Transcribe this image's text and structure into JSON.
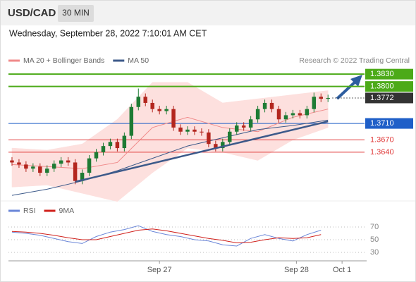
{
  "header": {
    "symbol": "USD/CAD",
    "timeframe": "30 MIN",
    "datetime": "Wednesday, September 28, 2022 7:10:01 AM CET"
  },
  "chart_data": [
    {
      "type": "candlestick",
      "attribution": "Research © 2022 Trading Central",
      "up_color": "#1e7b34",
      "down_color": "#b3261e",
      "xlim": [
        -0.5,
        50.5
      ],
      "ylim": [
        1.353,
        1.3856
      ],
      "x": [
        0,
        1,
        2,
        3,
        4,
        5,
        6,
        7,
        8,
        9,
        10,
        11,
        12,
        13,
        14,
        15,
        16,
        17,
        18,
        19,
        20,
        21,
        22,
        23,
        24,
        25,
        26,
        27,
        28,
        29,
        30,
        31,
        32,
        33,
        34,
        35,
        36,
        37,
        38,
        39,
        40,
        41,
        42,
        43,
        44,
        45
      ],
      "open": [
        1.362,
        1.3615,
        1.361,
        1.36,
        1.3605,
        1.359,
        1.36,
        1.3612,
        1.362,
        1.3615,
        1.357,
        1.359,
        1.3625,
        1.364,
        1.3655,
        1.3665,
        1.365,
        1.368,
        1.375,
        1.3775,
        1.376,
        1.3745,
        1.374,
        1.3745,
        1.37,
        1.369,
        1.3695,
        1.369,
        1.3688,
        1.366,
        1.365,
        1.3665,
        1.369,
        1.3705,
        1.37,
        1.372,
        1.3745,
        1.376,
        1.3745,
        1.372,
        1.373,
        1.3735,
        1.373,
        1.3745,
        1.3775,
        1.377
      ],
      "high": [
        1.3628,
        1.3623,
        1.3618,
        1.3613,
        1.3613,
        1.3608,
        1.362,
        1.3628,
        1.3628,
        1.3623,
        1.3598,
        1.3633,
        1.3648,
        1.3663,
        1.3673,
        1.3673,
        1.3688,
        1.3758,
        1.3795,
        1.3783,
        1.3768,
        1.3753,
        1.3753,
        1.3753,
        1.3708,
        1.3703,
        1.3703,
        1.3698,
        1.3696,
        1.3668,
        1.3673,
        1.3698,
        1.3713,
        1.3713,
        1.3728,
        1.3753,
        1.3768,
        1.3768,
        1.3753,
        1.3738,
        1.3743,
        1.3743,
        1.3753,
        1.3785,
        1.3783,
        1.378
      ],
      "low": [
        1.3607,
        1.3602,
        1.3592,
        1.3592,
        1.3582,
        1.3582,
        1.3592,
        1.3604,
        1.3607,
        1.3562,
        1.3562,
        1.3582,
        1.3617,
        1.3632,
        1.3647,
        1.3642,
        1.3642,
        1.3672,
        1.3742,
        1.3752,
        1.3737,
        1.3732,
        1.3732,
        1.3692,
        1.3682,
        1.3682,
        1.3682,
        1.368,
        1.3652,
        1.3642,
        1.3642,
        1.3657,
        1.3682,
        1.3692,
        1.3692,
        1.3712,
        1.3737,
        1.3737,
        1.3712,
        1.3712,
        1.3722,
        1.3722,
        1.3722,
        1.3737,
        1.3762,
        1.3762
      ],
      "close": [
        1.3615,
        1.361,
        1.36,
        1.3605,
        1.359,
        1.36,
        1.3612,
        1.362,
        1.3615,
        1.357,
        1.359,
        1.3625,
        1.364,
        1.3655,
        1.3665,
        1.365,
        1.368,
        1.375,
        1.3775,
        1.376,
        1.3745,
        1.374,
        1.3745,
        1.37,
        1.369,
        1.3695,
        1.369,
        1.3688,
        1.366,
        1.365,
        1.3665,
        1.369,
        1.3705,
        1.37,
        1.372,
        1.3745,
        1.376,
        1.3745,
        1.372,
        1.373,
        1.3735,
        1.373,
        1.3745,
        1.3775,
        1.377,
        1.3772
      ],
      "series": [
        {
          "name": "MA 20 + Bollinger Bands",
          "color": "#f08a8a",
          "band_color": "#fde0de",
          "x": [
            0,
            5,
            10,
            15,
            20,
            25,
            30,
            35,
            40,
            45
          ],
          "values": [
            1.361,
            1.3605,
            1.36,
            1.3615,
            1.37,
            1.3725,
            1.37,
            1.369,
            1.3725,
            1.3745
          ],
          "upper": [
            1.365,
            1.3645,
            1.366,
            1.372,
            1.381,
            1.381,
            1.376,
            1.377,
            1.378,
            1.379
          ],
          "lower": [
            1.3555,
            1.356,
            1.354,
            1.352,
            1.359,
            1.365,
            1.364,
            1.362,
            1.367,
            1.37
          ]
        },
        {
          "name": "MA 50",
          "color": "#3d5a8a",
          "x": [
            0,
            5,
            10,
            15,
            20,
            25,
            30,
            35,
            40,
            45
          ],
          "values": [
            1.3535,
            1.355,
            1.357,
            1.3595,
            1.3625,
            1.3655,
            1.3675,
            1.3695,
            1.3705,
            1.3718
          ]
        }
      ],
      "trendline": {
        "color": "#3d5a8a",
        "x": [
          9,
          45
        ],
        "values": [
          1.3568,
          1.3715
        ]
      },
      "levels": [
        {
          "value": 1.383,
          "label": "1.3830",
          "color": "#4caa18",
          "boxed": true,
          "dashed": false
        },
        {
          "value": 1.38,
          "label": "1.3800",
          "color": "#4caa18",
          "boxed": true,
          "dashed": false
        },
        {
          "value": 1.3772,
          "label": "1.3772",
          "color": "#333333",
          "boxed": true,
          "dashed": true
        },
        {
          "value": 1.371,
          "label": "1.3710",
          "color": "#1f5fc8",
          "boxed": true,
          "dashed": false
        },
        {
          "value": 1.367,
          "label": "1.3670",
          "color": "#e03a3a",
          "boxed": false,
          "dashed": false
        },
        {
          "value": 1.364,
          "label": "1.3640",
          "color": "#e03a3a",
          "boxed": false,
          "dashed": false
        }
      ]
    },
    {
      "type": "line",
      "xlim": [
        -0.5,
        50.5
      ],
      "ylim": [
        20,
        80
      ],
      "yticks": [
        70,
        50,
        30
      ],
      "xticks": [
        {
          "value": 21,
          "label": "Sep 27"
        },
        {
          "value": 40.5,
          "label": "Sep 28"
        },
        {
          "value": 47,
          "label": "Oct 1"
        }
      ],
      "series": [
        {
          "name": "RSI",
          "color": "#6a86d8",
          "x": [
            0,
            2,
            4,
            6,
            8,
            10,
            12,
            14,
            16,
            18,
            20,
            22,
            24,
            26,
            28,
            30,
            32,
            34,
            36,
            38,
            40,
            42,
            44
          ],
          "values": [
            62,
            60,
            57,
            52,
            47,
            44,
            55,
            62,
            66,
            72,
            63,
            58,
            55,
            50,
            48,
            42,
            40,
            52,
            58,
            52,
            48,
            58,
            65
          ]
        },
        {
          "name": "9MA",
          "color": "#d0201b",
          "x": [
            0,
            2,
            4,
            6,
            8,
            10,
            12,
            14,
            16,
            18,
            20,
            22,
            24,
            26,
            28,
            30,
            32,
            34,
            36,
            38,
            40,
            42,
            44
          ],
          "values": [
            63,
            62,
            60,
            57,
            53,
            50,
            50,
            55,
            60,
            65,
            67,
            64,
            60,
            56,
            52,
            49,
            45,
            46,
            50,
            53,
            52,
            53,
            58
          ]
        }
      ]
    }
  ]
}
